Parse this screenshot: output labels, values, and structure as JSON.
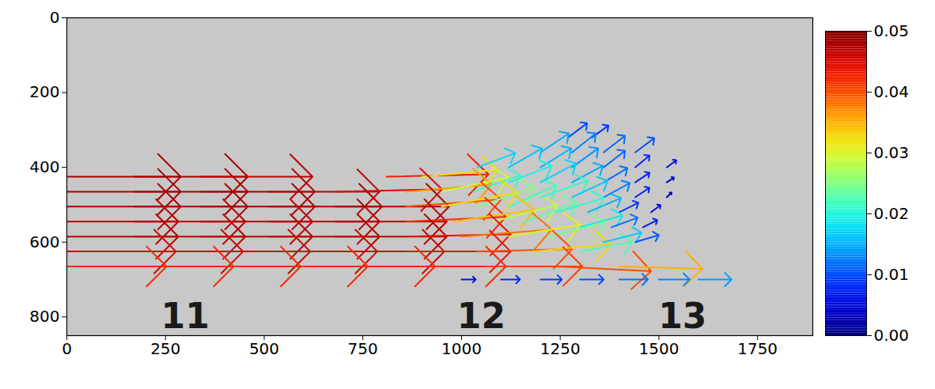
{
  "chart_data": {
    "type": "quiver",
    "xlim": [
      0,
      1890
    ],
    "ylim": [
      850,
      0
    ],
    "xticks": [
      0,
      250,
      500,
      750,
      1000,
      1250,
      1500,
      1750
    ],
    "yticks": [
      0,
      200,
      400,
      600,
      800
    ],
    "vectors": {
      "x": [
        0,
        170,
        340,
        810,
        900,
        0,
        170,
        340,
        510,
        680,
        860,
        950,
        1030,
        0,
        170,
        340,
        510,
        680,
        860,
        950,
        1040,
        1120,
        0,
        170,
        340,
        510,
        680,
        860,
        980,
        1080,
        1160,
        0,
        170,
        340,
        510,
        680,
        860,
        1000,
        1120,
        1220,
        0,
        170,
        340,
        510,
        680,
        860,
        1040,
        1180,
        1300,
        0,
        170,
        340,
        510,
        680,
        860,
        1060,
        1240,
        1400,
        1270,
        1330,
        1200,
        1280,
        1360,
        1440,
        1040,
        1120,
        1200,
        1280,
        1360,
        1440,
        1520,
        1120,
        1200,
        1280,
        1360,
        1440,
        1520,
        1200,
        1280,
        1360,
        1440,
        1520,
        1240,
        1320,
        1400,
        1480,
        1300,
        1380,
        1460,
        1360,
        1440,
        1000,
        1100,
        1200,
        1300,
        1400,
        1500,
        1600
      ],
      "y": [
        425,
        425,
        425,
        425,
        425,
        465,
        465,
        465,
        465,
        465,
        465,
        465,
        465,
        505,
        505,
        505,
        505,
        505,
        505,
        505,
        505,
        505,
        545,
        545,
        545,
        545,
        545,
        545,
        545,
        545,
        545,
        585,
        585,
        585,
        585,
        585,
        585,
        585,
        585,
        585,
        625,
        625,
        625,
        625,
        625,
        625,
        625,
        625,
        625,
        665,
        665,
        665,
        665,
        665,
        665,
        665,
        665,
        665,
        320,
        320,
        360,
        360,
        360,
        360,
        400,
        400,
        400,
        400,
        400,
        400,
        400,
        440,
        440,
        440,
        440,
        440,
        440,
        480,
        480,
        480,
        480,
        480,
        520,
        520,
        520,
        520,
        560,
        560,
        560,
        600,
        600,
        700,
        700,
        700,
        700,
        700,
        700,
        700
      ],
      "u": [
        0.048,
        0.048,
        0.047,
        0.043,
        0.032,
        0.048,
        0.048,
        0.048,
        0.047,
        0.045,
        0.036,
        0.028,
        0.02,
        0.048,
        0.048,
        0.048,
        0.048,
        0.048,
        0.04,
        0.032,
        0.024,
        0.02,
        0.047,
        0.047,
        0.047,
        0.047,
        0.047,
        0.042,
        0.034,
        0.027,
        0.022,
        0.047,
        0.047,
        0.047,
        0.047,
        0.047,
        0.044,
        0.038,
        0.03,
        0.024,
        0.046,
        0.046,
        0.046,
        0.046,
        0.046,
        0.044,
        0.04,
        0.033,
        0.022,
        0.042,
        0.042,
        0.042,
        0.042,
        0.042,
        0.042,
        0.041,
        0.04,
        0.035,
        0.008,
        0.007,
        0.012,
        0.01,
        0.009,
        0.008,
        0.016,
        0.014,
        0.013,
        0.011,
        0.009,
        0.006,
        0.004,
        0.018,
        0.015,
        0.013,
        0.01,
        0.006,
        0.003,
        0.02,
        0.015,
        0.011,
        0.006,
        0.002,
        0.02,
        0.014,
        0.008,
        0.004,
        0.018,
        0.011,
        0.006,
        0.016,
        0.01,
        0.006,
        0.008,
        0.009,
        0.01,
        0.012,
        0.013,
        0.014
      ],
      "v": [
        0,
        0,
        0,
        0.001,
        0.003,
        0,
        0,
        0,
        0,
        0.001,
        0.003,
        0.006,
        0.007,
        0,
        0,
        0,
        0,
        0,
        0.003,
        0.006,
        0.008,
        0.009,
        0,
        0,
        0,
        0,
        0,
        0.002,
        0.005,
        0.007,
        0.008,
        0,
        0,
        0,
        0,
        0,
        0.001,
        0.003,
        0.005,
        0.006,
        0,
        0,
        0,
        0,
        0,
        0,
        0.001,
        0.003,
        0.004,
        0,
        0,
        0,
        0,
        0,
        0,
        0,
        -0.002,
        -0.001,
        0.006,
        0.005,
        0.008,
        0.008,
        0.007,
        0.006,
        0.006,
        0.008,
        0.008,
        0.008,
        0.007,
        0.005,
        0.003,
        0.007,
        0.008,
        0.007,
        0.006,
        0.004,
        0.002,
        0.007,
        0.007,
        0.006,
        0.004,
        0.002,
        0.006,
        0.006,
        0.004,
        0.003,
        0.005,
        0.004,
        0.003,
        0.004,
        0.003,
        0,
        0,
        0,
        0,
        0,
        0,
        0
      ]
    },
    "annotations": [
      {
        "text": "11",
        "x": 300,
        "y": 800
      },
      {
        "text": "12",
        "x": 1050,
        "y": 800
      },
      {
        "text": "13",
        "x": 1560,
        "y": 800
      }
    ],
    "colorbar": {
      "range": [
        0,
        0.05
      ],
      "ticks": [
        {
          "value": 0,
          "label": "0.00"
        },
        {
          "value": 0.01,
          "label": "0.01"
        },
        {
          "value": 0.02,
          "label": "0.02"
        },
        {
          "value": 0.03,
          "label": "0.03"
        },
        {
          "value": 0.04,
          "label": "0.04"
        },
        {
          "value": 0.05,
          "label": "0.05"
        }
      ],
      "colors": [
        "#00007f",
        "#0000ff",
        "#007fff",
        "#00ffff",
        "#7fff7f",
        "#ffff00",
        "#ff7f00",
        "#ff0000",
        "#7f0000"
      ]
    }
  }
}
